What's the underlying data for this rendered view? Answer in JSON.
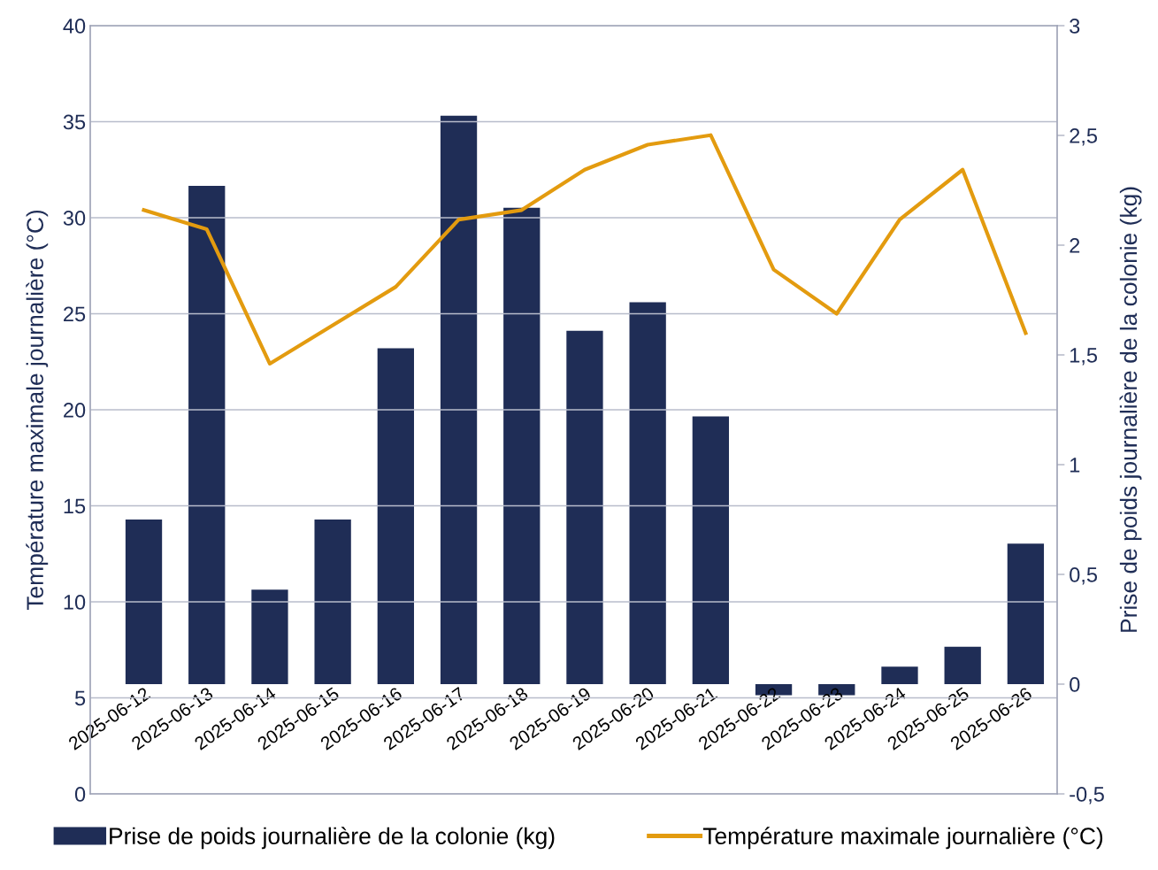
{
  "chart_data": {
    "type": "bar",
    "ylabel": "Température maximale journalière (°C)",
    "y2label": "Prise de poids journalière de la colonie (kg)",
    "categories": [
      "2025-06-12",
      "2025-06-13",
      "2025-06-14",
      "2025-06-15",
      "2025-06-16",
      "2025-06-17",
      "2025-06-18",
      "2025-06-19",
      "2025-06-20",
      "2025-06-21",
      "2025-06-22",
      "2025-06-23",
      "2025-06-24",
      "2025-06-25",
      "2025-06-26"
    ],
    "series": [
      {
        "name": "Prise de poids journalière de la colonie (kg)",
        "axis": "y2",
        "color": "#1f2d56",
        "values": [
          0.75,
          2.27,
          0.43,
          0.75,
          1.53,
          2.59,
          2.17,
          1.61,
          1.74,
          1.22,
          -0.05,
          -0.05,
          0.08,
          0.17,
          0.64
        ]
      },
      {
        "name": "Température maximale journalière (°C)",
        "type": "line",
        "axis": "y",
        "color": "#e39b0f",
        "values": [
          30.4,
          29.4,
          22.4,
          24.4,
          26.4,
          29.9,
          30.4,
          32.5,
          33.8,
          34.3,
          27.3,
          25.0,
          29.9,
          32.5,
          24.0
        ]
      }
    ],
    "ylim": [
      0,
      40
    ],
    "yticks": [
      0,
      5,
      10,
      15,
      20,
      25,
      30,
      35,
      40
    ],
    "y2lim": [
      -0.5,
      3
    ],
    "y2ticks": [
      {
        "value": -0.5,
        "label": "-0,5"
      },
      0,
      {
        "value": 0.5,
        "label": "0,5"
      },
      1,
      {
        "value": 1.5,
        "label": "1,5"
      },
      2,
      {
        "value": 2.5,
        "label": "2,5"
      },
      3
    ],
    "grid": "y",
    "legend": "bottom",
    "marker": "none",
    "line_style": "solid"
  }
}
